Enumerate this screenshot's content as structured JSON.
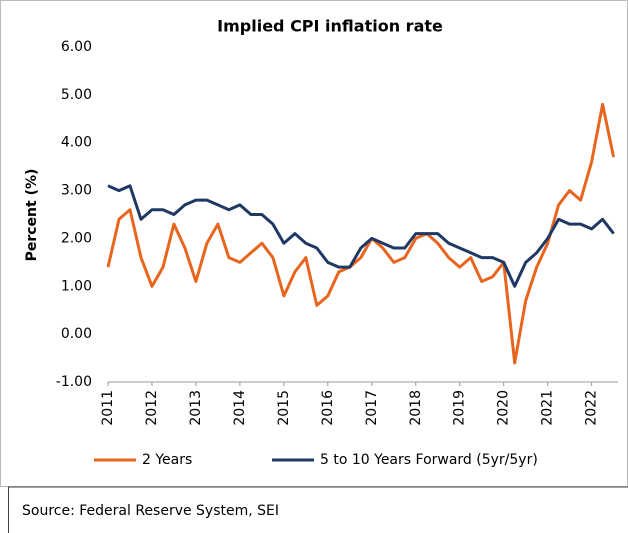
{
  "chart_data": {
    "type": "line",
    "title": "Implied CPI inflation rate",
    "y_label": "Percent (%)",
    "source": "Source: Federal Reserve System, SEI",
    "x": [
      2011.0,
      2011.25,
      2011.5,
      2011.75,
      2012.0,
      2012.25,
      2012.5,
      2012.75,
      2013.0,
      2013.25,
      2013.5,
      2013.75,
      2014.0,
      2014.25,
      2014.5,
      2014.75,
      2015.0,
      2015.25,
      2015.5,
      2015.75,
      2016.0,
      2016.25,
      2016.5,
      2016.75,
      2017.0,
      2017.25,
      2017.5,
      2017.75,
      2018.0,
      2018.25,
      2018.5,
      2018.75,
      2019.0,
      2019.25,
      2019.5,
      2019.75,
      2020.0,
      2020.25,
      2020.5,
      2020.75,
      2021.0,
      2021.25,
      2021.5,
      2021.75,
      2022.0,
      2022.25,
      2022.5
    ],
    "series": [
      {
        "name": "2 Years",
        "color": "#e8651e",
        "values": [
          1.4,
          2.4,
          2.6,
          1.6,
          1.0,
          1.4,
          2.3,
          1.8,
          1.1,
          1.9,
          2.3,
          1.6,
          1.5,
          1.7,
          1.9,
          1.6,
          0.8,
          1.3,
          1.6,
          0.6,
          0.8,
          1.3,
          1.4,
          1.6,
          2.0,
          1.8,
          1.5,
          1.6,
          2.0,
          2.1,
          1.9,
          1.6,
          1.4,
          1.6,
          1.1,
          1.2,
          1.5,
          -0.6,
          0.7,
          1.4,
          1.9,
          2.7,
          3.0,
          2.8,
          3.6,
          4.8,
          3.7
        ]
      },
      {
        "name": "5 to 10 Years Forward (5yr/5yr)",
        "color": "#1f3864",
        "values": [
          3.1,
          3.0,
          3.1,
          2.4,
          2.6,
          2.6,
          2.5,
          2.7,
          2.8,
          2.8,
          2.7,
          2.6,
          2.7,
          2.5,
          2.5,
          2.3,
          1.9,
          2.1,
          1.9,
          1.8,
          1.5,
          1.4,
          1.4,
          1.8,
          2.0,
          1.9,
          1.8,
          1.8,
          2.1,
          2.1,
          2.1,
          1.9,
          1.8,
          1.7,
          1.6,
          1.6,
          1.5,
          1.0,
          1.5,
          1.7,
          2.0,
          2.4,
          2.3,
          2.3,
          2.2,
          2.4,
          2.1
        ]
      }
    ],
    "xlim": [
      2011,
      2022.6
    ],
    "xticks": [
      2011,
      2012,
      2013,
      2014,
      2015,
      2016,
      2017,
      2018,
      2019,
      2020,
      2021,
      2022
    ],
    "ylim": [
      -1,
      6
    ],
    "yticks": [
      {
        "value": -1,
        "label": "-1.00"
      },
      {
        "value": 0,
        "label": "0.00"
      },
      {
        "value": 1,
        "label": "1.00"
      },
      {
        "value": 2,
        "label": "2.00"
      },
      {
        "value": 3,
        "label": "3.00"
      },
      {
        "value": 4,
        "label": "4.00"
      },
      {
        "value": 5,
        "label": "5.00"
      },
      {
        "value": 6,
        "label": "6.00"
      }
    ],
    "grid": false,
    "legend": "bottom"
  }
}
